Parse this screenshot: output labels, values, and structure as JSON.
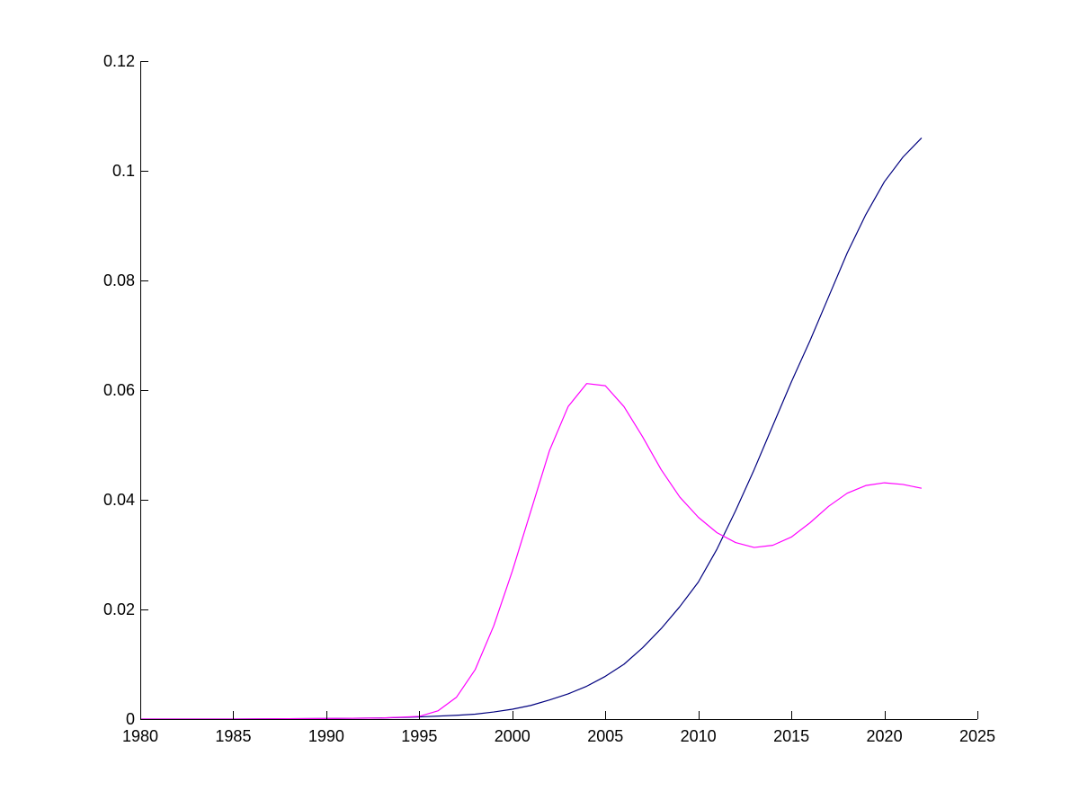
{
  "chart_data": {
    "type": "line",
    "title": "",
    "xlabel": "",
    "ylabel": "",
    "xlim": [
      1980,
      2025
    ],
    "ylim": [
      0,
      0.12
    ],
    "grid": false,
    "x_ticks": [
      {
        "value": 1980,
        "label": "1980"
      },
      {
        "value": 1985,
        "label": "1985"
      },
      {
        "value": 1990,
        "label": "1990"
      },
      {
        "value": 1995,
        "label": "1995"
      },
      {
        "value": 2000,
        "label": "2000"
      },
      {
        "value": 2005,
        "label": "2005"
      },
      {
        "value": 2010,
        "label": "2010"
      },
      {
        "value": 2015,
        "label": "2015"
      },
      {
        "value": 2020,
        "label": "2020"
      },
      {
        "value": 2025,
        "label": "2025"
      }
    ],
    "y_ticks": [
      {
        "value": 0,
        "label": "0"
      },
      {
        "value": 0.02,
        "label": "0.02"
      },
      {
        "value": 0.04,
        "label": "0.04"
      },
      {
        "value": 0.06,
        "label": "0.06"
      },
      {
        "value": 0.08,
        "label": "0.08"
      },
      {
        "value": 0.1,
        "label": "0.1"
      },
      {
        "value": 0.12,
        "label": "0.12"
      }
    ],
    "series": [
      {
        "color": "#00007f",
        "points": [
          [
            1980,
            0
          ],
          [
            1985,
            0
          ],
          [
            1990,
            0.0001
          ],
          [
            1993,
            0.0002
          ],
          [
            1995,
            0.0004
          ],
          [
            1997,
            0.0007
          ],
          [
            1998,
            0.0009
          ],
          [
            1999,
            0.0013
          ],
          [
            2000,
            0.0018
          ],
          [
            2001,
            0.0025
          ],
          [
            2002,
            0.0035
          ],
          [
            2003,
            0.0046
          ],
          [
            2004,
            0.006
          ],
          [
            2005,
            0.0078
          ],
          [
            2006,
            0.01
          ],
          [
            2007,
            0.013
          ],
          [
            2008,
            0.0165
          ],
          [
            2009,
            0.0205
          ],
          [
            2010,
            0.025
          ],
          [
            2011,
            0.031
          ],
          [
            2012,
            0.038
          ],
          [
            2013,
            0.0455
          ],
          [
            2014,
            0.0535
          ],
          [
            2015,
            0.0615
          ],
          [
            2016,
            0.069
          ],
          [
            2017,
            0.077
          ],
          [
            2018,
            0.085
          ],
          [
            2019,
            0.092
          ],
          [
            2020,
            0.098
          ],
          [
            2021,
            0.1025
          ],
          [
            2022,
            0.106
          ]
        ]
      },
      {
        "color": "#ff00ff",
        "points": [
          [
            1980,
            0
          ],
          [
            1985,
            0
          ],
          [
            1990,
            0.0001
          ],
          [
            1993,
            0.0002
          ],
          [
            1995,
            0.0005
          ],
          [
            1996,
            0.0015
          ],
          [
            1997,
            0.004
          ],
          [
            1998,
            0.009
          ],
          [
            1999,
            0.017
          ],
          [
            2000,
            0.027
          ],
          [
            2001,
            0.038
          ],
          [
            2002,
            0.049
          ],
          [
            2003,
            0.057
          ],
          [
            2004,
            0.0612
          ],
          [
            2005,
            0.0608
          ],
          [
            2006,
            0.057
          ],
          [
            2007,
            0.0515
          ],
          [
            2008,
            0.0455
          ],
          [
            2009,
            0.0405
          ],
          [
            2010,
            0.0368
          ],
          [
            2011,
            0.034
          ],
          [
            2012,
            0.0322
          ],
          [
            2013,
            0.0313
          ],
          [
            2014,
            0.0317
          ],
          [
            2015,
            0.0332
          ],
          [
            2016,
            0.0358
          ],
          [
            2017,
            0.0388
          ],
          [
            2018,
            0.0412
          ],
          [
            2019,
            0.0426
          ],
          [
            2020,
            0.0431
          ],
          [
            2021,
            0.0428
          ],
          [
            2022,
            0.0421
          ]
        ]
      }
    ]
  }
}
